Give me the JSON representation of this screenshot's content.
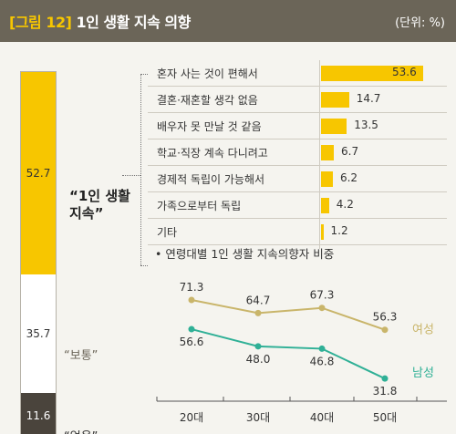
{
  "header": {
    "figure_label": "[그림 12]",
    "title": "1인 생활 지속 의향",
    "unit": "(단위: %)"
  },
  "intention": {
    "segments": [
      {
        "key": "continue",
        "value": 52.7,
        "value_label": "52.7",
        "label": "“1인 생활 지속”",
        "color": "#f7c600"
      },
      {
        "key": "normal",
        "value": 35.7,
        "value_label": "35.7",
        "label": "“보통”",
        "color": "#ffffff"
      },
      {
        "key": "no",
        "value": 11.6,
        "value_label": "11.6",
        "label": "“없음”",
        "color": "#4a443c"
      }
    ]
  },
  "reasons": [
    {
      "label": "혼자 사는 것이 편해서",
      "value": 53.6,
      "value_label": "53.6"
    },
    {
      "label": "결혼·재혼할 생각 없음",
      "value": 14.7,
      "value_label": "14.7"
    },
    {
      "label": "배우자 못 만날 것 같음",
      "value": 13.5,
      "value_label": "13.5"
    },
    {
      "label": "학교·직장 계속 다니려고",
      "value": 6.7,
      "value_label": "6.7"
    },
    {
      "label": "경제적 독립이 가능해서",
      "value": 6.2,
      "value_label": "6.2"
    },
    {
      "label": "가족으로부터 독립",
      "value": 4.2,
      "value_label": "4.2"
    },
    {
      "label": "기타",
      "value": 1.2,
      "value_label": "1.2"
    }
  ],
  "chart_data": [
    {
      "type": "bar",
      "categories": [
        "혼자 사는 것이 편해서",
        "결혼·재혼할 생각 없음",
        "배우자 못 만날 것 같음",
        "학교·직장 계속 다니려고",
        "경제적 독립이 가능해서",
        "가족으로부터 독립",
        "기타"
      ],
      "values": [
        53.6,
        14.7,
        13.5,
        6.7,
        6.2,
        4.2,
        1.2
      ],
      "title": "",
      "xlabel": "",
      "ylabel": ""
    },
    {
      "type": "line",
      "title": "연령대별 1인 생활 지속의향자 비중",
      "categories": [
        "20대",
        "30대",
        "40대",
        "50대"
      ],
      "series": [
        {
          "name": "여성",
          "values": [
            71.3,
            64.7,
            67.3,
            56.3
          ],
          "color": "#c9b56a"
        },
        {
          "name": "남성",
          "values": [
            56.6,
            48.0,
            46.8,
            31.8
          ],
          "color": "#2fb096"
        }
      ],
      "series_value_labels": [
        [
          "71.3",
          "64.7",
          "67.3",
          "56.3"
        ],
        [
          "56.6",
          "48.0",
          "46.8",
          "31.8"
        ]
      ],
      "xlabel": "",
      "ylabel": "",
      "grid": false
    }
  ],
  "line_section": {
    "bullet": "•",
    "title": "연령대별 1인 생활 지속의향자 비중"
  },
  "colors": {
    "header_bg": "#6b6558",
    "accent_yellow": "#f7c600",
    "female_line": "#c9b56a",
    "male_line": "#2fb096",
    "dark_segment": "#4a443c"
  }
}
